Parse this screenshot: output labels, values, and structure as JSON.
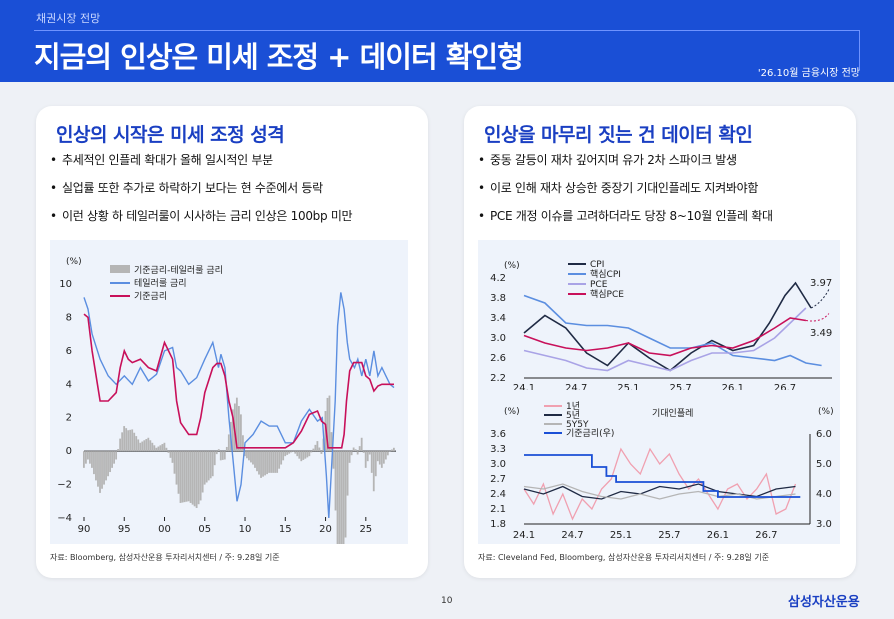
{
  "header": {
    "category": "채권시장 전망",
    "title": "지금의 인상은 미세 조정 + 데이터 확인형",
    "tag": "'26.10월 금융시장 전망"
  },
  "left": {
    "title": "인상의 시작은 미세 조정 성격",
    "bullets": [
      "추세적인 인플레 확대가 올해 일시적인 부분",
      "실업률 또한 추가로 하락하기 보다는 현 수준에서 등락",
      "이런 상황 하 테일러룰이 시사하는 금리 인상은 100bp 미만"
    ],
    "source": "자료: Bloomberg, 삼성자산운용 투자리서치센터 / 주: 9.28일 기준"
  },
  "right": {
    "title": "인상을 마무리 짓는 건 데이터 확인",
    "bullets": [
      "중동 갈등이 재차 깊어지며 유가 2차 스파이크 발생",
      "이로 인해 재차 상승한 중장기 기대인플레도 지켜봐야함",
      "PCE 개정 이슈를 고려하더라도 당장 8~10월 인플레 확대"
    ],
    "source": "자료: Cleveland Fed, Bloomberg, 삼성자산운용 투자리서치센터 / 주: 9.28일 기준"
  },
  "footer": {
    "page": "10",
    "logo": "삼성자산운용"
  },
  "colors": {
    "brand": "#1a4fd6",
    "title_blue": "#1a3fc2",
    "crimson": "#c8105a",
    "steel": "#5b8ee0",
    "gray": "#b5b5b5",
    "navy": "#1f2a44",
    "lavender": "#a9a3e6",
    "pink": "#f0a0b0"
  },
  "chart_data": [
    {
      "type": "line",
      "unit": "(%)",
      "ylim": [
        -4,
        10
      ],
      "yticks": [
        10,
        8,
        6,
        4,
        2,
        0,
        -2,
        -4
      ],
      "xticks": [
        "90",
        "95",
        "00",
        "05",
        "10",
        "15",
        "20",
        "25"
      ],
      "x_range": [
        1990,
        2028.75
      ],
      "series": [
        {
          "name": "기준금리-테일러룰 금리",
          "style": "bar",
          "color": "#b5b5b5"
        },
        {
          "name": "테일러룰 금리",
          "color": "#5b8ee0",
          "x": [
            1990,
            1990.5,
            1991,
            1992,
            1993,
            1994,
            1995,
            1996,
            1997,
            1998,
            1999,
            2000,
            2001,
            2001.5,
            2002,
            2003,
            2004,
            2005,
            2006,
            2006.7,
            2007,
            2007.5,
            2008,
            2008.5,
            2009,
            2009.5,
            2010,
            2011,
            2012,
            2013,
            2014,
            2015,
            2016,
            2017,
            2018,
            2019,
            2019.6,
            2020.1,
            2020.4,
            2020.8,
            2021.2,
            2021.5,
            2021.9,
            2022.3,
            2022.7,
            2023,
            2023.6,
            2024,
            2024.5,
            2025,
            2025.5,
            2026,
            2026.5,
            2027,
            2027.5,
            2028,
            2028.5
          ],
          "y": [
            9.2,
            8.5,
            7.0,
            5.5,
            4.5,
            4.0,
            4.5,
            4.0,
            5.0,
            4.2,
            4.6,
            6.0,
            6.2,
            5.0,
            4.8,
            4.0,
            4.4,
            5.5,
            6.5,
            5.0,
            5.8,
            5.0,
            2.0,
            -0.5,
            -3.0,
            -2.0,
            0.5,
            1.0,
            1.8,
            1.5,
            1.5,
            0.5,
            0.5,
            1.8,
            2.5,
            1.8,
            2.0,
            -1.5,
            -4.0,
            -0.5,
            3.0,
            7.5,
            9.5,
            8.5,
            6.5,
            5.5,
            5.0,
            5.5,
            4.5,
            5.5,
            4.5,
            6.0,
            4.5,
            5.0,
            4.5,
            4.0,
            3.8
          ]
        },
        {
          "name": "기준금리",
          "color": "#c8105a",
          "x": [
            1990,
            1990.5,
            1991,
            1991.5,
            1992,
            1993,
            1994,
            1994.5,
            1995,
            1995.5,
            1996,
            1997,
            1998,
            1999,
            2000,
            2001,
            2001.5,
            2002,
            2003,
            2004,
            2004.5,
            2005,
            2006,
            2006.5,
            2007,
            2007.5,
            2008,
            2008.5,
            2009,
            2015,
            2016,
            2017,
            2018,
            2019,
            2019.5,
            2020,
            2020.3,
            2022,
            2022.3,
            2022.6,
            2023,
            2023.5,
            2024,
            2024.5,
            2025,
            2025.5,
            2026,
            2026.5,
            2027,
            2028,
            2028.5
          ],
          "y": [
            8.2,
            8.0,
            6.0,
            4.5,
            3.0,
            3.0,
            3.5,
            5.0,
            6.0,
            5.5,
            5.3,
            5.5,
            5.0,
            4.8,
            6.5,
            5.5,
            3.0,
            1.7,
            1.0,
            1.0,
            2.0,
            3.5,
            5.0,
            5.25,
            5.25,
            4.5,
            3.0,
            2.0,
            0.2,
            0.2,
            0.5,
            1.2,
            2.2,
            2.4,
            1.8,
            1.6,
            0.2,
            0.2,
            1.0,
            3.0,
            4.8,
            5.3,
            5.3,
            5.3,
            4.5,
            4.3,
            3.6,
            3.9,
            4.0,
            4.0,
            4.0
          ]
        }
      ]
    },
    {
      "type": "line",
      "unit": "(%)",
      "ylim": [
        2.2,
        4.2
      ],
      "yticks": [
        4.2,
        3.8,
        3.4,
        3.0,
        2.6,
        2.2
      ],
      "xticks": [
        "24.1",
        "24.7",
        "25.1",
        "25.7",
        "26.1",
        "26.7"
      ],
      "x_range": [
        2024.0,
        2026.95
      ],
      "annotations": [
        "3.97",
        "3.49"
      ],
      "series": [
        {
          "name": "CPI",
          "color": "#1f2a44",
          "x": [
            2024.0,
            2024.2,
            2024.4,
            2024.6,
            2024.8,
            2025.0,
            2025.2,
            2025.4,
            2025.6,
            2025.8,
            2026.0,
            2026.2,
            2026.35,
            2026.5,
            2026.6,
            2026.75
          ],
          "y": [
            3.1,
            3.45,
            3.2,
            2.7,
            2.45,
            2.9,
            2.6,
            2.35,
            2.7,
            2.95,
            2.75,
            2.85,
            3.3,
            3.85,
            4.1,
            3.6
          ]
        },
        {
          "name": "핵심CPI",
          "color": "#5b8ee0",
          "x": [
            2024.0,
            2024.2,
            2024.4,
            2024.6,
            2024.8,
            2025.0,
            2025.2,
            2025.4,
            2025.6,
            2025.8,
            2026.0,
            2026.2,
            2026.4,
            2026.55,
            2026.7,
            2026.85
          ],
          "y": [
            3.85,
            3.7,
            3.3,
            3.25,
            3.25,
            3.2,
            3.0,
            2.8,
            2.8,
            2.9,
            2.65,
            2.6,
            2.55,
            2.65,
            2.5,
            2.45
          ]
        },
        {
          "name": "PCE",
          "color": "#a9a3e6",
          "x": [
            2024.0,
            2024.2,
            2024.4,
            2024.6,
            2024.8,
            2025.0,
            2025.2,
            2025.4,
            2025.6,
            2025.8,
            2026.0,
            2026.2,
            2026.4,
            2026.55,
            2026.7
          ],
          "y": [
            2.75,
            2.65,
            2.55,
            2.4,
            2.35,
            2.55,
            2.45,
            2.35,
            2.55,
            2.7,
            2.7,
            2.75,
            3.0,
            3.3,
            3.6
          ]
        },
        {
          "name": "핵심PCE",
          "color": "#c8105a",
          "x": [
            2024.0,
            2024.2,
            2024.4,
            2024.6,
            2024.8,
            2025.0,
            2025.2,
            2025.4,
            2025.6,
            2025.8,
            2026.0,
            2026.2,
            2026.4,
            2026.55,
            2026.7
          ],
          "y": [
            3.05,
            2.9,
            2.8,
            2.75,
            2.8,
            2.9,
            2.7,
            2.65,
            2.8,
            2.85,
            2.8,
            2.95,
            3.2,
            3.4,
            3.35
          ]
        }
      ]
    },
    {
      "type": "line",
      "title": "기대인플레",
      "unit_left": "(%)",
      "unit_right": "(%)",
      "ylim": [
        1.8,
        3.6
      ],
      "ylim_right": [
        3.0,
        6.0
      ],
      "yticks": [
        3.6,
        3.3,
        3.0,
        2.7,
        2.4,
        2.1,
        1.8
      ],
      "yticks_right": [
        6.0,
        5.0,
        4.0,
        3.0
      ],
      "xticks": [
        "24.1",
        "24.7",
        "25.1",
        "25.7",
        "26.1",
        "26.7"
      ],
      "x_range": [
        2024.0,
        2026.95
      ],
      "series": [
        {
          "name": "1년",
          "color": "#f0a0b0",
          "x": [
            2024.0,
            2024.1,
            2024.2,
            2024.3,
            2024.4,
            2024.5,
            2024.6,
            2024.7,
            2024.8,
            2024.9,
            2025.0,
            2025.1,
            2025.2,
            2025.3,
            2025.4,
            2025.5,
            2025.6,
            2025.7,
            2025.8,
            2025.9,
            2026.0,
            2026.1,
            2026.2,
            2026.3,
            2026.4,
            2026.5,
            2026.6,
            2026.7,
            2026.8
          ],
          "y": [
            2.5,
            2.2,
            2.6,
            2.0,
            2.4,
            1.9,
            2.3,
            2.1,
            2.5,
            2.7,
            3.3,
            3.0,
            2.8,
            3.3,
            3.0,
            3.2,
            2.8,
            2.5,
            2.7,
            2.4,
            2.1,
            2.5,
            2.6,
            2.3,
            2.5,
            2.8,
            2.0,
            2.1,
            2.6
          ]
        },
        {
          "name": "5년",
          "color": "#1f2a44",
          "x": [
            2024.0,
            2024.2,
            2024.4,
            2024.6,
            2024.8,
            2025.0,
            2025.2,
            2025.4,
            2025.6,
            2025.8,
            2026.0,
            2026.2,
            2026.4,
            2026.6,
            2026.8
          ],
          "y": [
            2.5,
            2.4,
            2.55,
            2.35,
            2.3,
            2.45,
            2.4,
            2.55,
            2.5,
            2.6,
            2.45,
            2.4,
            2.35,
            2.5,
            2.55
          ]
        },
        {
          "name": "5Y5Y",
          "color": "#b5b5b5",
          "x": [
            2024.0,
            2024.2,
            2024.4,
            2024.6,
            2024.8,
            2025.0,
            2025.2,
            2025.4,
            2025.6,
            2025.8,
            2026.0,
            2026.2,
            2026.4,
            2026.6,
            2026.8
          ],
          "y": [
            2.55,
            2.5,
            2.6,
            2.45,
            2.35,
            2.3,
            2.4,
            2.3,
            2.4,
            2.45,
            2.35,
            2.4,
            2.3,
            2.35,
            2.4
          ]
        },
        {
          "name": "기준금리(우)",
          "color": "#1a4fd6",
          "axis": "right",
          "style": "step",
          "x": [
            2024.0,
            2024.7,
            2024.7,
            2024.85,
            2024.85,
            2024.95,
            2024.95,
            2025.85,
            2025.85,
            2026.0,
            2026.0,
            2026.85
          ],
          "y": [
            5.3,
            5.3,
            4.9,
            4.9,
            4.6,
            4.6,
            4.4,
            4.4,
            4.1,
            4.1,
            3.9,
            3.9
          ]
        }
      ]
    }
  ]
}
